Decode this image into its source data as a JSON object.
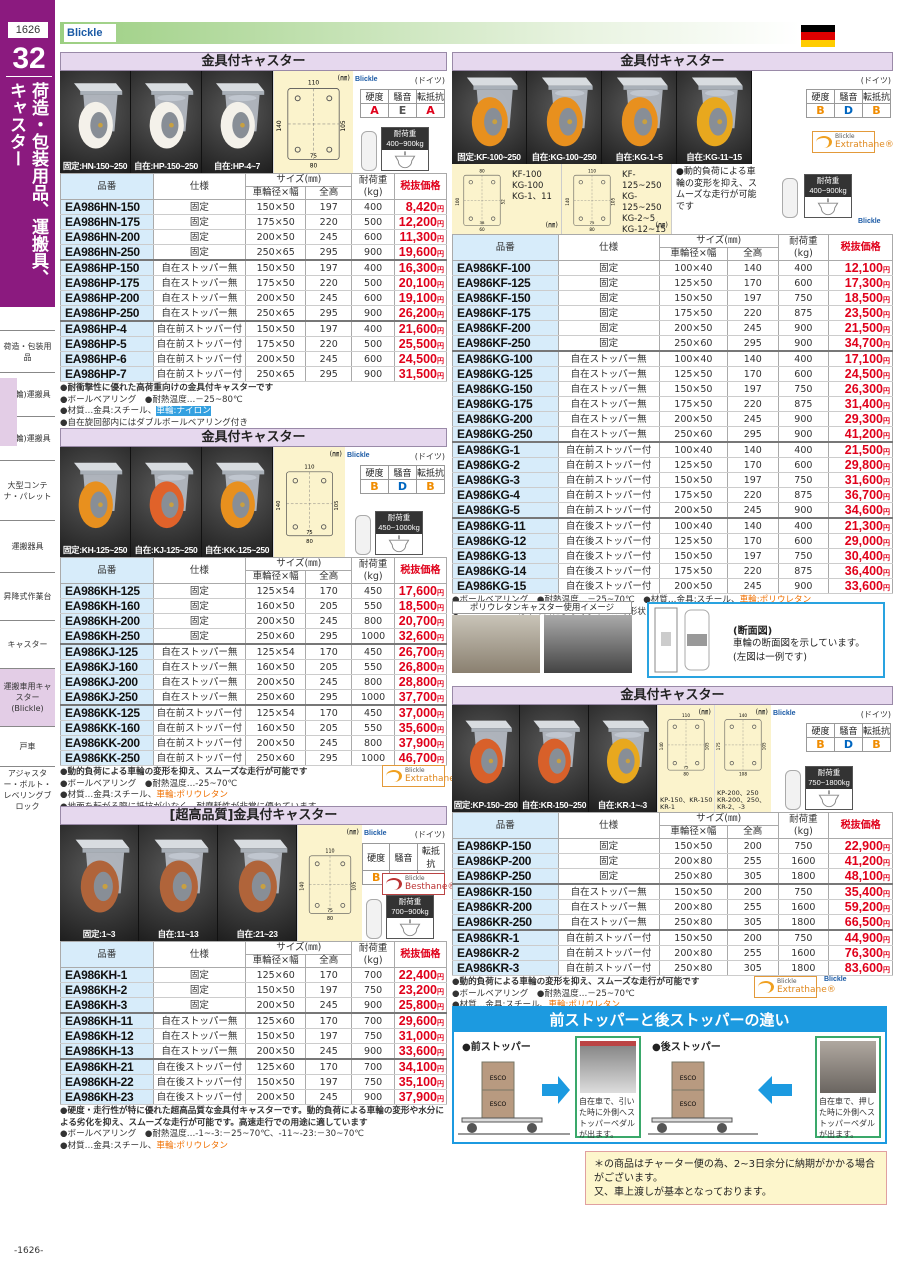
{
  "sidebar": {
    "page_number": "1626",
    "chapter": "32",
    "vertical_title_1": "荷造・包装用品、運搬具、",
    "vertical_title_2": "キャスター",
    "nav": [
      {
        "label": "荷造・包装用品"
      },
      {
        "label": "(二輪)運搬具"
      },
      {
        "label": "(四輪)運搬具"
      },
      {
        "label": "大型コンテナ・パレット"
      },
      {
        "label": "運搬器具"
      },
      {
        "label": "昇降式作業台"
      },
      {
        "label": "キャスター"
      },
      {
        "label": "運搬車用キャスター(Blickle)",
        "active": true
      },
      {
        "label": "戸車"
      },
      {
        "label": "アジャスター・ボルト・レベリングブロック"
      }
    ]
  },
  "header": {
    "brand": "Blickle",
    "flag": "germany"
  },
  "colors": {
    "price": "#e0001a",
    "rating_A": "#e0001a",
    "rating_E": "#555555",
    "rating_B": "#f08c00",
    "rating_D": "#0066c0",
    "accent_blue": "#1c9ae0",
    "title_bar": "#e6d8ee",
    "code_column": "#d7ecfa"
  },
  "common": {
    "table_headers": {
      "code": "品番",
      "spec": "仕様",
      "size": "サイズ(㎜)",
      "wheel": "車輪径×幅",
      "height": "全高",
      "load": "耐荷重",
      "load_unit": "(kg)",
      "price": "税抜価格"
    },
    "yen": "円",
    "origin": "(ドイツ)",
    "rating_headers": [
      "硬度",
      "騒音",
      "転抵抗"
    ],
    "load_label": "耐荷重",
    "brand_small": "Blickle",
    "unit": "(㎜)"
  },
  "sections": {
    "l1": {
      "title": "金具付キャスター",
      "ratings": [
        "A",
        "E",
        "A"
      ],
      "photos": [
        {
          "caption": "固定:HN-150~250",
          "wheel": "#f4f1ea"
        },
        {
          "caption": "自在:HP-150~250",
          "wheel": "#f4f1ea"
        },
        {
          "caption": "自在:HP-4~7",
          "wheel": "#f4f1ea"
        }
      ],
      "load_value": "400~900kg",
      "diagram": {
        "dims": [
          "110",
          "140",
          "105",
          "75",
          "80"
        ]
      },
      "groups": [
        [
          [
            "EA986HN-150",
            "固定",
            "150×50",
            "197",
            "400",
            "8,420"
          ],
          [
            "EA986HN-175",
            "固定",
            "175×50",
            "220",
            "500",
            "12,200"
          ],
          [
            "EA986HN-200",
            "固定",
            "200×50",
            "245",
            "600",
            "11,300"
          ],
          [
            "EA986HN-250",
            "固定",
            "250×65",
            "295",
            "900",
            "19,600"
          ]
        ],
        [
          [
            "EA986HP-150",
            "自在ストッパー無",
            "150×50",
            "197",
            "400",
            "16,300"
          ],
          [
            "EA986HP-175",
            "自在ストッパー無",
            "175×50",
            "220",
            "500",
            "20,100"
          ],
          [
            "EA986HP-200",
            "自在ストッパー無",
            "200×50",
            "245",
            "600",
            "19,100"
          ],
          [
            "EA986HP-250",
            "自在ストッパー無",
            "250×65",
            "295",
            "900",
            "26,200"
          ]
        ],
        [
          [
            "EA986HP-4",
            "自在前ストッパー付",
            "150×50",
            "197",
            "400",
            "21,600"
          ],
          [
            "EA986HP-5",
            "自在前ストッパー付",
            "175×50",
            "220",
            "500",
            "25,500"
          ],
          [
            "EA986HP-6",
            "自在前ストッパー付",
            "200×50",
            "245",
            "600",
            "24,500"
          ],
          [
            "EA986HP-7",
            "自在前ストッパー付",
            "250×65",
            "295",
            "900",
            "31,500"
          ]
        ]
      ],
      "notes": [
        {
          "text": "●耐衝撃性に優れた高荷重向けの金具付キャスターです",
          "bold": true
        },
        {
          "text": "●ボールベアリング　●耐熱温度…－25~80℃"
        },
        {
          "text": "●材質…金具:スチール、",
          "hl": "車輪:ナイロン",
          "hl_style": "blue"
        },
        {
          "text": "●自在旋回部内にはダブルボールベアリング付き"
        }
      ]
    },
    "l2": {
      "title": "金具付キャスター",
      "ratings": [
        "B",
        "D",
        "B"
      ],
      "photos": [
        {
          "caption": "固定:KH-125~250",
          "wheel": "#e8901e"
        },
        {
          "caption": "自在:KJ-125~250",
          "wheel": "#e0622a"
        },
        {
          "caption": "自在:KK-125~250",
          "wheel": "#e8901e"
        }
      ],
      "load_value": "450~1000kg",
      "diagram": {
        "dims": [
          "110",
          "140",
          "105",
          "75",
          "80"
        ]
      },
      "material_logo": "Extrathane®",
      "groups": [
        [
          [
            "EA986KH-125",
            "固定",
            "125×54",
            "170",
            "450",
            "17,600"
          ],
          [
            "EA986KH-160",
            "固定",
            "160×50",
            "205",
            "550",
            "18,500"
          ],
          [
            "EA986KH-200",
            "固定",
            "200×50",
            "245",
            "800",
            "20,700"
          ],
          [
            "EA986KH-250",
            "固定",
            "250×60",
            "295",
            "1000",
            "32,600"
          ]
        ],
        [
          [
            "EA986KJ-125",
            "自在ストッパー無",
            "125×54",
            "170",
            "450",
            "26,700"
          ],
          [
            "EA986KJ-160",
            "自在ストッパー無",
            "160×50",
            "205",
            "550",
            "26,800"
          ],
          [
            "EA986KJ-200",
            "自在ストッパー無",
            "200×50",
            "245",
            "800",
            "28,800"
          ],
          [
            "EA986KJ-250",
            "自在ストッパー無",
            "250×60",
            "295",
            "1000",
            "37,700"
          ]
        ],
        [
          [
            "EA986KK-125",
            "自在前ストッパー付",
            "125×54",
            "170",
            "450",
            "37,000"
          ],
          [
            "EA986KK-160",
            "自在前ストッパー付",
            "160×50",
            "205",
            "550",
            "35,600"
          ],
          [
            "EA986KK-200",
            "自在前ストッパー付",
            "200×50",
            "245",
            "800",
            "37,900"
          ],
          [
            "EA986KK-250",
            "自在前ストッパー付",
            "250×60",
            "295",
            "1000",
            "46,700"
          ]
        ]
      ],
      "notes": [
        {
          "text": "●動的負荷による車輪の変形を抑え、スムーズな走行が可能です",
          "bold": true
        },
        {
          "text": "●ボールベアリング　●耐熱温度…-25~70℃"
        },
        {
          "text": "●材質…金具:スチール、",
          "hl": "車輪:ポリウレタン",
          "hl_style": "orange"
        },
        {
          "text": "●地面を転がる際に抵抗が少なく、耐摩耗性が非常に優れています"
        }
      ]
    },
    "l3": {
      "title": "[超高品質]金具付キャスター",
      "ratings": [
        "B",
        "D",
        "A"
      ],
      "photos": [
        {
          "caption": "固定:1~3",
          "wheel": "#b0643a"
        },
        {
          "caption": "自在:11~13",
          "wheel": "#b0643a"
        },
        {
          "caption": "自在:21~23",
          "wheel": "#b0643a"
        }
      ],
      "load_value": "700~900kg",
      "diagram": {
        "dims": [
          "110",
          "140",
          "105",
          "75",
          "80"
        ]
      },
      "material_logo": "Besthane®",
      "groups": [
        [
          [
            "EA986KH-1",
            "固定",
            "125×60",
            "170",
            "700",
            "22,400"
          ],
          [
            "EA986KH-2",
            "固定",
            "150×50",
            "197",
            "750",
            "23,200"
          ],
          [
            "EA986KH-3",
            "固定",
            "200×50",
            "245",
            "900",
            "25,800"
          ]
        ],
        [
          [
            "EA986KH-11",
            "自在ストッパー無",
            "125×60",
            "170",
            "700",
            "29,600"
          ],
          [
            "EA986KH-12",
            "自在ストッパー無",
            "150×50",
            "197",
            "750",
            "31,000"
          ],
          [
            "EA986KH-13",
            "自在ストッパー無",
            "200×50",
            "245",
            "900",
            "33,600"
          ]
        ],
        [
          [
            "EA986KH-21",
            "自在後ストッパー付",
            "125×60",
            "170",
            "700",
            "34,100"
          ],
          [
            "EA986KH-22",
            "自在後ストッパー付",
            "150×50",
            "197",
            "750",
            "35,100"
          ],
          [
            "EA986KH-23",
            "自在後ストッパー付",
            "200×50",
            "245",
            "900",
            "37,900"
          ]
        ]
      ],
      "notes": [
        {
          "text": "●硬度・走行性が特に優れた超高品質な金具付キャスターです。動的負荷による車輪の変形や水分による劣化を抑え、スムーズな走行が可能です。高速走行での用途に適しています",
          "bold": true
        },
        {
          "text": "●ボールベアリング　●耐熱温度…-1~-3:－25~70℃、-11~-23:－30~70℃"
        },
        {
          "text": "●材質…金具:スチール、",
          "hl": "車輪:ポリウレタン",
          "hl_style": "orange"
        }
      ]
    },
    "r1": {
      "title": "金具付キャスター",
      "ratings": [
        "B",
        "D",
        "B"
      ],
      "photos": [
        {
          "caption": "固定:KF-100~250",
          "wheel": "#e8901e"
        },
        {
          "caption": "自在:KG-100~250",
          "wheel": "#e8901e"
        },
        {
          "caption": "自在:KG-1~5",
          "wheel": "#e8901e"
        },
        {
          "caption": "自在:KG-11~15",
          "wheel": "#e8a81e"
        }
      ],
      "load_value": "400~900kg",
      "material_logo": "Extrathane®",
      "diagrams_row": [
        {
          "models": [
            "KF-100",
            "KG-100",
            "KG-1、11"
          ],
          "dims": [
            "80",
            "100",
            "52",
            "38",
            "60"
          ]
        },
        {
          "models": [
            "KF-125~250",
            "KG-125~250",
            "KG-2~5",
            "KG-12~15"
          ],
          "dims": [
            "110",
            "140",
            "105",
            "75",
            "80"
          ]
        }
      ],
      "row_note": "●動的負荷による車輪の変形を抑え、スムーズな走行が可能です",
      "groups": [
        [
          [
            "EA986KF-100",
            "固定",
            "100×40",
            "140",
            "400",
            "12,100"
          ],
          [
            "EA986KF-125",
            "固定",
            "125×50",
            "170",
            "600",
            "17,300"
          ],
          [
            "EA986KF-150",
            "固定",
            "150×50",
            "197",
            "750",
            "18,500"
          ],
          [
            "EA986KF-175",
            "固定",
            "175×50",
            "220",
            "875",
            "23,500"
          ],
          [
            "EA986KF-200",
            "固定",
            "200×50",
            "245",
            "900",
            "21,500"
          ],
          [
            "EA986KF-250",
            "固定",
            "250×60",
            "295",
            "900",
            "34,700"
          ]
        ],
        [
          [
            "EA986KG-100",
            "自在ストッパー無",
            "100×40",
            "140",
            "400",
            "17,100"
          ],
          [
            "EA986KG-125",
            "自在ストッパー無",
            "125×50",
            "170",
            "600",
            "24,500"
          ],
          [
            "EA986KG-150",
            "自在ストッパー無",
            "150×50",
            "197",
            "750",
            "26,300"
          ],
          [
            "EA986KG-175",
            "自在ストッパー無",
            "175×50",
            "220",
            "875",
            "31,400"
          ],
          [
            "EA986KG-200",
            "自在ストッパー無",
            "200×50",
            "245",
            "900",
            "29,300"
          ],
          [
            "EA986KG-250",
            "自在ストッパー無",
            "250×60",
            "295",
            "900",
            "41,200"
          ]
        ],
        [
          [
            "EA986KG-1",
            "自在前ストッパー付",
            "100×40",
            "140",
            "400",
            "21,500"
          ],
          [
            "EA986KG-2",
            "自在前ストッパー付",
            "125×50",
            "170",
            "600",
            "29,800"
          ],
          [
            "EA986KG-3",
            "自在前ストッパー付",
            "150×50",
            "197",
            "750",
            "31,600"
          ],
          [
            "EA986KG-4",
            "自在前ストッパー付",
            "175×50",
            "220",
            "875",
            "36,700"
          ],
          [
            "EA986KG-5",
            "自在前ストッパー付",
            "200×50",
            "245",
            "900",
            "34,600"
          ]
        ],
        [
          [
            "EA986KG-11",
            "自在後ストッパー付",
            "100×40",
            "140",
            "400",
            "21,300"
          ],
          [
            "EA986KG-12",
            "自在後ストッパー付",
            "125×50",
            "170",
            "600",
            "29,000"
          ],
          [
            "EA986KG-13",
            "自在後ストッパー付",
            "150×50",
            "197",
            "750",
            "30,400"
          ],
          [
            "EA986KG-14",
            "自在後ストッパー付",
            "175×50",
            "220",
            "875",
            "36,400"
          ],
          [
            "EA986KG-15",
            "自在後ストッパー付",
            "200×50",
            "245",
            "900",
            "33,600"
          ]
        ]
      ],
      "notes": [
        {
          "text": "●ボールベアリング　●耐熱温度…－25~70℃　●材質…金具:スチール、",
          "hl": "車輪:ポリウレタン",
          "hl_style": "orange"
        },
        {
          "text": "●KG-100~-250はサイズによってホイールの形状は異なります。"
        }
      ]
    },
    "r2": {
      "title": "金具付キャスター",
      "ratings": [
        "B",
        "D",
        "B"
      ],
      "photos": [
        {
          "caption": "固定:KP-150~250",
          "wheel": "#d8602a"
        },
        {
          "caption": "自在:KR-150~250",
          "wheel": "#d8602a"
        },
        {
          "caption": "自在:KR-1~-3",
          "wheel": "#e8a81e"
        }
      ],
      "load_value": "750~1800kg",
      "material_logo": "Extrathane®",
      "diagrams": [
        {
          "dims": [
            "110",
            "140",
            "105",
            "75",
            "80"
          ],
          "models": "KP-150、KR-150 KR-1"
        },
        {
          "dims": [
            "140",
            "175",
            "105",
            "",
            "108"
          ],
          "models": "KP-200、250 KR-200、250、KR-2、-3"
        }
      ],
      "groups": [
        [
          [
            "EA986KP-150",
            "固定",
            "150×50",
            "200",
            "750",
            "22,900"
          ],
          [
            "EA986KP-200",
            "固定",
            "200×80",
            "255",
            "1600",
            "41,200"
          ],
          [
            "EA986KP-250",
            "固定",
            "250×80",
            "305",
            "1800",
            "48,100"
          ]
        ],
        [
          [
            "EA986KR-150",
            "自在ストッパー無",
            "150×50",
            "200",
            "750",
            "35,400"
          ],
          [
            "EA986KR-200",
            "自在ストッパー無",
            "200×80",
            "255",
            "1600",
            "59,200"
          ],
          [
            "EA986KR-250",
            "自在ストッパー無",
            "250×80",
            "305",
            "1800",
            "66,500"
          ]
        ],
        [
          [
            "EA986KR-1",
            "自在前ストッパー付",
            "150×50",
            "200",
            "750",
            "44,900"
          ],
          [
            "EA986KR-2",
            "自在前ストッパー付",
            "200×80",
            "255",
            "1600",
            "76,300"
          ],
          [
            "EA986KR-3",
            "自在前ストッパー付",
            "250×80",
            "305",
            "1800",
            "83,600"
          ]
        ]
      ],
      "notes": [
        {
          "text": "●動的負荷による車輪の変形を抑え、スムーズな走行が可能です",
          "bold": true
        },
        {
          "text": "●ボールベアリング　●耐熱温度…－25~70℃"
        },
        {
          "text": "●材質…金具:スチール、",
          "hl": "車輪:ポリウレタン",
          "hl_style": "orange"
        }
      ]
    }
  },
  "usage_images": {
    "label": "ポリウレタンキャスター使用イメージ"
  },
  "cross_section": {
    "title": "(断面図)",
    "line1": "車輪の断面図を示しています。",
    "line2": "(左図は一例です)"
  },
  "stopper": {
    "title": "前ストッパーと後ストッパーの違い",
    "front_label": "●前ストッパー",
    "rear_label": "●後ストッパー",
    "box_label": "ESCO",
    "front_caption": "自在車で、引いた時に外側へストッパーペダルが出ます。",
    "rear_caption": "自在車で、押した時に外側へストッパーペダルが出ます。"
  },
  "notice": {
    "line1": "＊の商品はチャーター便の為、2~3日余分に納期がかかる場合がございます。",
    "line2": "又、車上渡しが基本となっております。"
  },
  "footer": {
    "page": "-1626-"
  }
}
